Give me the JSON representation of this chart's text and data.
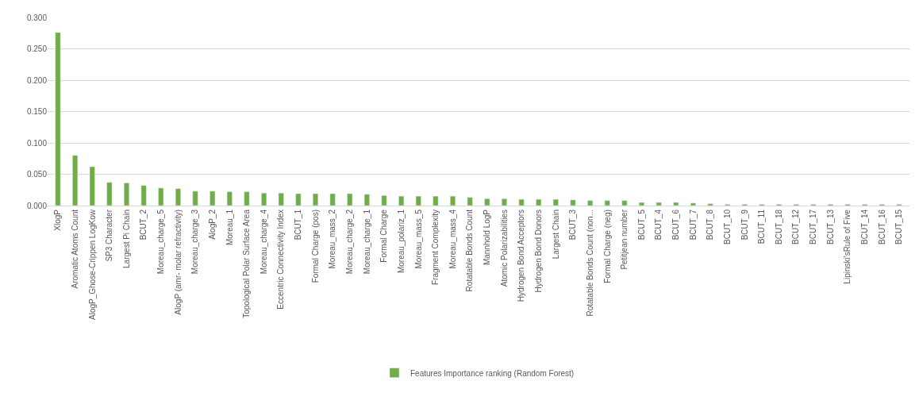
{
  "chart_data": {
    "type": "bar",
    "categories": [
      "XlogP",
      "Aromatic Atoms Count",
      "AlogP_Ghose-Crippen LogKow",
      "SP3 Character",
      "Largest Pi Chain",
      "BCUT_2",
      "Moreau_charge_5",
      "AlogP (amr- molar refractivity)",
      "Moreau_charge_3",
      "AlogP_2",
      "Moreau_1",
      "Topological Polar Surface Area",
      "Moreau_charge_4",
      "Eccentric Connectivity Index",
      "BCUT_1",
      "Formal Charge (pos)",
      "Moreau_mass_2",
      "Moreau_charge_2",
      "Moreau_charge_1",
      "Formal Charge",
      "Moreau_polariz_1",
      "Moreau_mass_5",
      "Fragment Complexity",
      "Moreau_mass_4",
      "Rotatable Bonds Count",
      "Mannhold LogP",
      "Atomic Polarizabilities",
      "Hydrogen Bond Acceptors",
      "Hydrogen Bond Donors",
      "Largest Chain",
      "BCUT_3",
      "Rotatable Bonds Count (non...",
      "Formal Charge (neg)",
      "Petitjean number",
      "BCUT_5",
      "BCUT_4",
      "BCUT_6",
      "BCUT_7",
      "BCUT_8",
      "BCUT_10",
      "BCUT_9",
      "BCUT_11",
      "BCUT_18",
      "BCUT_12",
      "BCUT_17",
      "BCUT_13",
      "Lipinski'sRule of Five",
      "BCUT_14",
      "BCUT_16",
      "BCUT_15"
    ],
    "series": [
      {
        "name": "Features Importance ranking (Random Forest)",
        "color": "#70ad47",
        "values": [
          0.276,
          0.08,
          0.062,
          0.037,
          0.036,
          0.032,
          0.028,
          0.027,
          0.023,
          0.023,
          0.022,
          0.022,
          0.02,
          0.02,
          0.019,
          0.019,
          0.019,
          0.019,
          0.018,
          0.016,
          0.015,
          0.015,
          0.015,
          0.015,
          0.013,
          0.011,
          0.011,
          0.01,
          0.01,
          0.01,
          0.009,
          0.008,
          0.008,
          0.008,
          0.005,
          0.005,
          0.005,
          0.004,
          0.003,
          0.002,
          0.002,
          0.002,
          0.002,
          0.002,
          0.002,
          0.002,
          0.002,
          0.002,
          0.002,
          0.002
        ]
      }
    ],
    "ylim": [
      0,
      0.3
    ],
    "yticks": [
      {
        "value": 0,
        "label": "0.000"
      },
      {
        "value": 0.05,
        "label": "0.050"
      },
      {
        "value": 0.1,
        "label": "0.100"
      },
      {
        "value": 0.15,
        "label": "0.150"
      },
      {
        "value": 0.2,
        "label": "0.200"
      },
      {
        "value": 0.25,
        "label": "0.250"
      },
      {
        "value": 0.3,
        "label": "0.300"
      }
    ],
    "grid": "y",
    "legend": "bottom"
  }
}
